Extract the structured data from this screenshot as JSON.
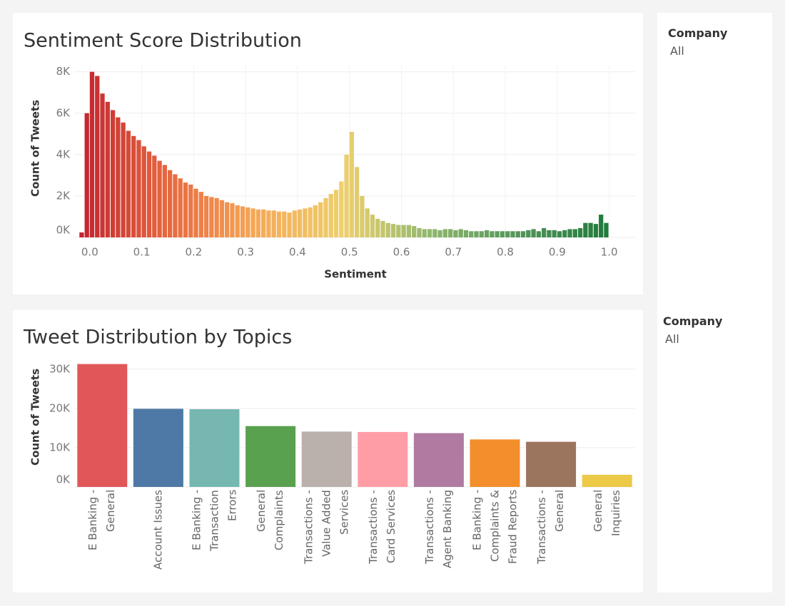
{
  "chart_data": [
    {
      "type": "histogram",
      "title": "Sentiment Score Distribution",
      "x_label": "Sentiment",
      "y_label": "Count of Tweets",
      "bins": [
        -0.02,
        -0.01,
        0,
        0.01,
        0.02,
        0.03,
        0.04,
        0.05,
        0.06,
        0.07,
        0.08,
        0.09,
        0.1,
        0.11,
        0.12,
        0.13,
        0.14,
        0.15,
        0.16,
        0.17,
        0.18,
        0.19,
        0.2,
        0.21,
        0.22,
        0.23,
        0.24,
        0.25,
        0.26,
        0.27,
        0.28,
        0.29,
        0.3,
        0.31,
        0.32,
        0.33,
        0.34,
        0.35,
        0.36,
        0.37,
        0.38,
        0.39,
        0.4,
        0.41,
        0.42,
        0.43,
        0.44,
        0.45,
        0.46,
        0.47,
        0.48,
        0.49,
        0.5,
        0.51,
        0.52,
        0.53,
        0.54,
        0.55,
        0.56,
        0.57,
        0.58,
        0.59,
        0.6,
        0.61,
        0.62,
        0.63,
        0.64,
        0.65,
        0.66,
        0.67,
        0.68,
        0.69,
        0.7,
        0.71,
        0.72,
        0.73,
        0.74,
        0.75,
        0.76,
        0.77,
        0.78,
        0.79,
        0.8,
        0.81,
        0.82,
        0.83,
        0.84,
        0.85,
        0.86,
        0.87,
        0.88,
        0.89,
        0.9,
        0.91,
        0.92,
        0.93,
        0.94,
        0.95,
        0.96,
        0.97,
        0.98,
        0.99,
        1
      ],
      "values": [
        240,
        6000,
        8000,
        7800,
        6950,
        6550,
        6150,
        5800,
        5550,
        5150,
        4900,
        4700,
        4400,
        4150,
        3950,
        3700,
        3500,
        3250,
        3050,
        2850,
        2650,
        2550,
        2350,
        2200,
        2000,
        1950,
        1900,
        1800,
        1700,
        1650,
        1550,
        1500,
        1450,
        1400,
        1350,
        1350,
        1300,
        1300,
        1250,
        1250,
        1200,
        1300,
        1350,
        1400,
        1450,
        1550,
        1700,
        1900,
        2100,
        2300,
        2700,
        4000,
        5100,
        3400,
        2000,
        1400,
        1100,
        900,
        800,
        700,
        650,
        600,
        600,
        600,
        550,
        450,
        400,
        400,
        400,
        350,
        400,
        400,
        350,
        400,
        350,
        300,
        300,
        300,
        350,
        300,
        300,
        300,
        300,
        300,
        300,
        300,
        350,
        400,
        300,
        450,
        350,
        350,
        300,
        350,
        400,
        400,
        450,
        700,
        700,
        650,
        1100,
        700
      ],
      "color_stops": [
        "#c0232e",
        "#e8673f",
        "#f5a857",
        "#eed06e",
        "#8eb76d",
        "#52955a",
        "#1f7a3b"
      ],
      "xlim": [
        -0.03,
        1.05
      ],
      "xticks": [
        {
          "value": 0,
          "label": "0.0"
        },
        0.1,
        0.2,
        0.3,
        0.4,
        0.5,
        0.6,
        0.7,
        0.8,
        0.9,
        {
          "value": 1,
          "label": "1.0"
        }
      ],
      "ylim": [
        0,
        8300
      ],
      "yticks": [
        {
          "value": 0,
          "label": "0K"
        },
        {
          "value": 2000,
          "label": "2K"
        },
        {
          "value": 4000,
          "label": "4K"
        },
        {
          "value": 6000,
          "label": "6K"
        },
        {
          "value": 8000,
          "label": "8K"
        }
      ],
      "grid": true
    },
    {
      "type": "bar",
      "title": "Tweet Distribution by Topics",
      "y_label": "Count of Tweets",
      "categories": [
        "E Banking - General",
        "Account Issues",
        "E Banking - Transaction Errors",
        "General Complaints",
        "Transactions - Value Added Services",
        "Transactions - Card Services",
        "Transactions - Agent Banking",
        "E Banking - Complaints & Fraud Reports",
        "Transactions - General",
        "General Inquiries"
      ],
      "values": [
        31300,
        19900,
        19800,
        15500,
        14100,
        14000,
        13700,
        12100,
        11500,
        3100
      ],
      "colors": [
        "#e15759",
        "#4e79a7",
        "#76b7b2",
        "#59a14f",
        "#bab0ac",
        "#ff9da7",
        "#b07aa1",
        "#f28e2b",
        "#9c755f",
        "#edc948"
      ],
      "ylim": [
        0,
        32500
      ],
      "yticks": [
        {
          "value": 0,
          "label": "0K"
        },
        {
          "value": 10000,
          "label": "10K"
        },
        {
          "value": 20000,
          "label": "20K"
        },
        {
          "value": 30000,
          "label": "30K"
        }
      ],
      "grid": true
    }
  ],
  "filters": [
    {
      "label": "Company",
      "value": "All"
    },
    {
      "label": "Company",
      "value": "All"
    }
  ]
}
